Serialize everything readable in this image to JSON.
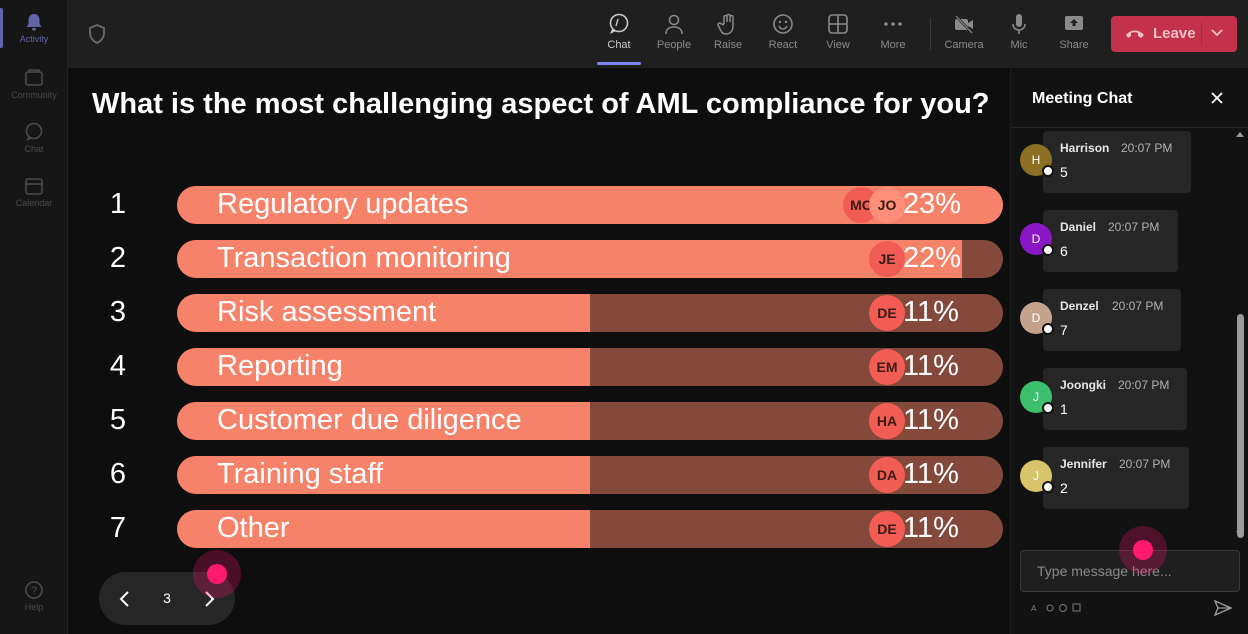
{
  "rail": {
    "items": [
      {
        "label": "Activity",
        "icon": "bell-icon"
      },
      {
        "label": "Community",
        "icon": "community-icon"
      },
      {
        "label": "Chat",
        "icon": "chat-icon"
      },
      {
        "label": "Calendar",
        "icon": "calendar-icon"
      },
      {
        "label": "Help",
        "icon": "help-icon"
      }
    ]
  },
  "toolbar": {
    "chat": "Chat",
    "people": "People",
    "raise": "Raise",
    "react": "React",
    "view": "View",
    "more": "More",
    "camera": "Camera",
    "mic": "Mic",
    "share": "Share",
    "leave": "Leave",
    "leave_color": "#c4314b",
    "accent": "#7f85f5"
  },
  "poll": {
    "question": "What is the most challenging aspect of AML compliance for you?",
    "options": [
      {
        "num": "1",
        "label": "Regulatory updates",
        "pct": "23%",
        "fraction": 1.0,
        "avatars": [
          "MC",
          "JO"
        ]
      },
      {
        "num": "2",
        "label": "Transaction monitoring",
        "pct": "22%",
        "fraction": 0.95,
        "avatars": [
          "JE"
        ]
      },
      {
        "num": "3",
        "label": "Risk assessment",
        "pct": "11%",
        "fraction": 0.5,
        "avatars": [
          "DE"
        ]
      },
      {
        "num": "4",
        "label": "Reporting",
        "pct": "11%",
        "fraction": 0.5,
        "avatars": [
          "EM"
        ]
      },
      {
        "num": "5",
        "label": "Customer due diligence",
        "pct": "11%",
        "fraction": 0.5,
        "avatars": [
          "HA"
        ]
      },
      {
        "num": "6",
        "label": "Training staff",
        "pct": "11%",
        "fraction": 0.5,
        "avatars": [
          "DA"
        ]
      },
      {
        "num": "7",
        "label": "Other",
        "pct": "11%",
        "fraction": 0.5,
        "avatars": [
          "DE"
        ]
      }
    ],
    "page": "3"
  },
  "chat": {
    "title": "Meeting Chat",
    "messages": [
      {
        "initial": "H",
        "sender": "Harrison",
        "time": "20:07 PM",
        "text": "5",
        "color": "#8a7020"
      },
      {
        "initial": "D",
        "sender": "Daniel",
        "time": "20:07 PM",
        "text": "6",
        "color": "#8b16c6"
      },
      {
        "initial": "D",
        "sender": "Denzel",
        "time": "20:07 PM",
        "text": "7",
        "color": "#c4a38e"
      },
      {
        "initial": "J",
        "sender": "Joongki",
        "time": "20:07 PM",
        "text": "1",
        "color": "#3cc06e"
      },
      {
        "initial": "J",
        "sender": "Jennifer",
        "time": "20:07 PM",
        "text": "2",
        "color": "#d8c46a"
      }
    ],
    "input_placeholder": "Type message here..."
  }
}
